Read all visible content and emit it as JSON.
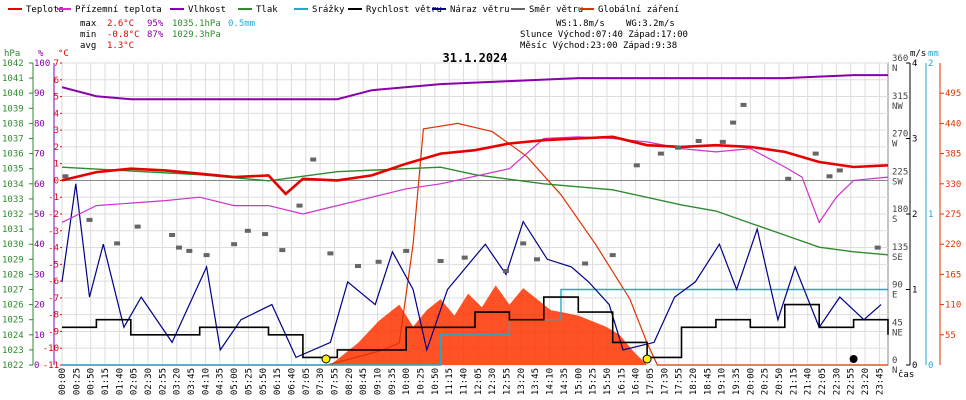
{
  "chart_data": {
    "type": "line",
    "title": "31.1.2024",
    "legend": [
      {
        "name": "Teplota",
        "color": "#e60000"
      },
      {
        "name": "Přízemní teplota",
        "color": "#cc33cc"
      },
      {
        "name": "Vlhkost",
        "color": "#8800aa"
      },
      {
        "name": "Tlak",
        "color": "#2e8b2e"
      },
      {
        "name": "Srážky",
        "color": "#22aacc"
      },
      {
        "name": "Rychlost větru",
        "color": "#000000"
      },
      {
        "name": "Náraz větru",
        "color": "#000088"
      },
      {
        "name": "Směr větru",
        "color": "#666666"
      },
      {
        "name": "Globální záření",
        "color": "#dd3300"
      }
    ],
    "stats": {
      "max": {
        "label": "max",
        "temp": "2.6°C",
        "hum": "95%",
        "press": "1035.1hPa",
        "rain": "0.5mm"
      },
      "min": {
        "label": "min",
        "temp": "-0.8°C",
        "hum": "87%",
        "press": "1029.3hPa"
      },
      "avg": {
        "label": "avg",
        "temp": "1.3°C"
      },
      "ws": "WS:1.8m/s",
      "wg": "WG:3.2m/s",
      "sun": "Slunce Východ:07:40  Západ:17:00",
      "moon": "Měsíc  Východ:23:00  Západ:9:38"
    },
    "axes": {
      "hpa": {
        "label": "hPa",
        "min": 1022,
        "max": 1042,
        "ticks": [
          1022,
          1023,
          1024,
          1025,
          1026,
          1027,
          1028,
          1029,
          1030,
          1031,
          1032,
          1033,
          1034,
          1035,
          1036,
          1037,
          1038,
          1039,
          1040,
          1041,
          1042
        ]
      },
      "humidity": {
        "label": "%",
        "min": 0,
        "max": 100,
        "ticks": [
          0,
          10,
          20,
          30,
          40,
          50,
          60,
          70,
          80,
          90,
          100
        ]
      },
      "temp": {
        "label": "°C",
        "min": -11,
        "max": 7,
        "ticks": [
          -11,
          -10,
          -9,
          -8,
          -7,
          -6,
          -5,
          -4,
          -3,
          -2,
          -1,
          0,
          1,
          2,
          3,
          4,
          5,
          6,
          7
        ]
      },
      "wind_speed": {
        "label": "m/s",
        "min": 0,
        "max": 4,
        "ticks": [
          0,
          1,
          2,
          3,
          4
        ]
      },
      "rain_mm": {
        "label": "mm",
        "min": 0,
        "max": 2,
        "ticks": [
          0,
          1,
          2
        ]
      },
      "wind_dir": {
        "ticks": [
          {
            "v": 0,
            "l": "0",
            "d": "N"
          },
          {
            "v": 45,
            "l": "45",
            "d": "NE"
          },
          {
            "v": 90,
            "l": "90",
            "d": "E"
          },
          {
            "v": 135,
            "l": "135",
            "d": "SE"
          },
          {
            "v": 180,
            "l": "180",
            "d": "S"
          },
          {
            "v": 225,
            "l": "225",
            "d": "SW"
          },
          {
            "v": 270,
            "l": "270",
            "d": "W"
          },
          {
            "v": 315,
            "l": "315",
            "d": "NW"
          },
          {
            "v": 360,
            "l": "360",
            "d": "N"
          }
        ]
      },
      "radiation": {
        "label": "W/m²",
        "min": 0,
        "max": 550,
        "ticks": [
          55,
          110,
          165,
          220,
          275,
          330,
          385,
          440,
          495
        ]
      },
      "x_label": "čas",
      "x_ticks": [
        "00:00",
        "00:25",
        "00:50",
        "01:15",
        "01:40",
        "02:05",
        "02:30",
        "02:55",
        "03:20",
        "03:45",
        "04:10",
        "04:35",
        "05:00",
        "05:25",
        "05:50",
        "06:15",
        "06:40",
        "07:05",
        "07:30",
        "07:55",
        "08:20",
        "08:45",
        "09:10",
        "09:35",
        "10:00",
        "10:25",
        "10:50",
        "11:15",
        "11:40",
        "12:05",
        "12:30",
        "12:55",
        "13:20",
        "13:45",
        "14:10",
        "14:35",
        "15:00",
        "15:25",
        "15:50",
        "16:15",
        "16:40",
        "17:05",
        "17:30",
        "17:55",
        "18:20",
        "18:45",
        "19:10",
        "19:35",
        "20:00",
        "20:25",
        "20:50",
        "21:15",
        "21:40",
        "22:05",
        "22:30",
        "22:55",
        "23:20",
        "23:45"
      ]
    },
    "series": {
      "temperature": [
        [
          0,
          0
        ],
        [
          1,
          0.5
        ],
        [
          2,
          0.7
        ],
        [
          3,
          0.6
        ],
        [
          4,
          0.4
        ],
        [
          5,
          0.2
        ],
        [
          6,
          0.3
        ],
        [
          6.5,
          -0.8
        ],
        [
          7,
          0.1
        ],
        [
          8,
          0
        ],
        [
          9,
          0.3
        ],
        [
          10,
          1
        ],
        [
          11,
          1.6
        ],
        [
          12,
          1.8
        ],
        [
          13,
          2.2
        ],
        [
          14,
          2.4
        ],
        [
          15,
          2.5
        ],
        [
          16,
          2.6
        ],
        [
          17,
          2.1
        ],
        [
          18,
          2
        ],
        [
          19,
          2.1
        ],
        [
          20,
          2
        ],
        [
          21,
          1.7
        ],
        [
          22,
          1.1
        ],
        [
          23,
          0.8
        ],
        [
          24,
          0.9
        ]
      ],
      "ground_temperature": [
        [
          0,
          -2.5
        ],
        [
          0.5,
          -2
        ],
        [
          1,
          -1.5
        ],
        [
          3,
          -1.2
        ],
        [
          4,
          -1
        ],
        [
          5,
          -1.5
        ],
        [
          6,
          -1.5
        ],
        [
          7,
          -2
        ],
        [
          10,
          -0.5
        ],
        [
          11,
          -0.2
        ],
        [
          13,
          0.7
        ],
        [
          14,
          2.5
        ],
        [
          15,
          2.6
        ],
        [
          16,
          2.5
        ],
        [
          17,
          2.3
        ],
        [
          18,
          1.9
        ],
        [
          19,
          1.7
        ],
        [
          20,
          1.9
        ],
        [
          21,
          0.8
        ],
        [
          21.5,
          0.2
        ],
        [
          22,
          -2.5
        ],
        [
          22.5,
          -1
        ],
        [
          23,
          0
        ],
        [
          24,
          0.2
        ]
      ],
      "humidity": [
        [
          0,
          92
        ],
        [
          1,
          89
        ],
        [
          2,
          88
        ],
        [
          5,
          88
        ],
        [
          8,
          88
        ],
        [
          9,
          91
        ],
        [
          11,
          93
        ],
        [
          13,
          94
        ],
        [
          15,
          95
        ],
        [
          17,
          95
        ],
        [
          19,
          95
        ],
        [
          21,
          95
        ],
        [
          23,
          96
        ],
        [
          24,
          96
        ]
      ],
      "pressure": [
        [
          0,
          1035.1
        ],
        [
          4,
          1034.6
        ],
        [
          6,
          1034.2
        ],
        [
          8,
          1034.8
        ],
        [
          10,
          1035
        ],
        [
          11,
          1035.1
        ],
        [
          12,
          1034.6
        ],
        [
          14,
          1034
        ],
        [
          16,
          1033.6
        ],
        [
          18,
          1032.6
        ],
        [
          19,
          1032.2
        ],
        [
          20,
          1031.4
        ],
        [
          21,
          1030.6
        ],
        [
          22,
          1029.8
        ],
        [
          23,
          1029.5
        ],
        [
          24,
          1029.3
        ]
      ],
      "rain_mm": [
        [
          0,
          0
        ],
        [
          10.5,
          0
        ],
        [
          11,
          0.2
        ],
        [
          12,
          0.2
        ],
        [
          13,
          0.3
        ],
        [
          14,
          0.3
        ],
        [
          14.5,
          0.5
        ],
        [
          15,
          0.5
        ],
        [
          24,
          0.5
        ]
      ],
      "wind_speed": [
        [
          0,
          0.5
        ],
        [
          1,
          0.6
        ],
        [
          2,
          0.4
        ],
        [
          4,
          0.5
        ],
        [
          6,
          0.4
        ],
        [
          7,
          0.1
        ],
        [
          8,
          0.2
        ],
        [
          10,
          0.5
        ],
        [
          12,
          0.7
        ],
        [
          13,
          0.6
        ],
        [
          14,
          0.9
        ],
        [
          15,
          0.7
        ],
        [
          16,
          0.3
        ],
        [
          17,
          0.1
        ],
        [
          18,
          0.5
        ],
        [
          19,
          0.6
        ],
        [
          20,
          0.5
        ],
        [
          21,
          0.8
        ],
        [
          22,
          0.5
        ],
        [
          23,
          0.6
        ],
        [
          24,
          0.4
        ]
      ],
      "wind_gust": [
        [
          0,
          1.1
        ],
        [
          0.4,
          2.4
        ],
        [
          0.8,
          0.9
        ],
        [
          1.2,
          1.6
        ],
        [
          1.8,
          0.5
        ],
        [
          2.3,
          0.9
        ],
        [
          3.2,
          0.3
        ],
        [
          3.6,
          0.7
        ],
        [
          4.2,
          1.3
        ],
        [
          4.6,
          0.2
        ],
        [
          5.2,
          0.6
        ],
        [
          6.1,
          0.8
        ],
        [
          6.8,
          0.1
        ],
        [
          7.8,
          0.3
        ],
        [
          8.3,
          1.1
        ],
        [
          9.1,
          0.8
        ],
        [
          9.6,
          1.5
        ],
        [
          10.2,
          1.0
        ],
        [
          10.6,
          0.2
        ],
        [
          11.2,
          1.0
        ],
        [
          12.3,
          1.6
        ],
        [
          12.9,
          1.2
        ],
        [
          13.4,
          1.9
        ],
        [
          14.1,
          1.4
        ],
        [
          14.8,
          1.3
        ],
        [
          15.3,
          1.1
        ],
        [
          15.9,
          0.8
        ],
        [
          16.3,
          0.2
        ],
        [
          17.2,
          0.3
        ],
        [
          17.8,
          0.9
        ],
        [
          18.4,
          1.1
        ],
        [
          19.1,
          1.6
        ],
        [
          19.6,
          1.0
        ],
        [
          20.2,
          1.8
        ],
        [
          20.8,
          0.6
        ],
        [
          21.3,
          1.3
        ],
        [
          22.0,
          0.5
        ],
        [
          22.6,
          0.9
        ],
        [
          23.3,
          0.6
        ],
        [
          23.8,
          0.8
        ]
      ],
      "wind_dir": [
        [
          0.1,
          225
        ],
        [
          0.8,
          173
        ],
        [
          1.6,
          145
        ],
        [
          2.2,
          165
        ],
        [
          3.2,
          155
        ],
        [
          3.4,
          140
        ],
        [
          3.7,
          136
        ],
        [
          4.2,
          131
        ],
        [
          5.0,
          144
        ],
        [
          5.4,
          160
        ],
        [
          5.9,
          156
        ],
        [
          6.4,
          137
        ],
        [
          6.9,
          190
        ],
        [
          7.3,
          245
        ],
        [
          7.8,
          133
        ],
        [
          8.6,
          118
        ],
        [
          9.2,
          123
        ],
        [
          10.0,
          136
        ],
        [
          11.0,
          124
        ],
        [
          11.7,
          128
        ],
        [
          12.9,
          112
        ],
        [
          13.4,
          145
        ],
        [
          13.8,
          126
        ],
        [
          15.2,
          121
        ],
        [
          16.0,
          131
        ],
        [
          16.7,
          238
        ],
        [
          17.4,
          252
        ],
        [
          17.9,
          259
        ],
        [
          18.5,
          267
        ],
        [
          19.2,
          266
        ],
        [
          19.5,
          289
        ],
        [
          19.8,
          310
        ],
        [
          21.1,
          222
        ],
        [
          21.9,
          252
        ],
        [
          22.3,
          225
        ],
        [
          22.6,
          232
        ],
        [
          23.7,
          140
        ]
      ],
      "radiation": [
        [
          0,
          0
        ],
        [
          7.7,
          0
        ],
        [
          8.0,
          5
        ],
        [
          8.6,
          15
        ],
        [
          9.2,
          25
        ],
        [
          9.8,
          40
        ],
        [
          10.2,
          220
        ],
        [
          10.5,
          430
        ],
        [
          11.5,
          440
        ],
        [
          12.5,
          425
        ],
        [
          13.5,
          380
        ],
        [
          14.5,
          310
        ],
        [
          15.5,
          220
        ],
        [
          16.5,
          120
        ],
        [
          17.0,
          40
        ],
        [
          17.3,
          0
        ],
        [
          24,
          0
        ]
      ],
      "radiation_fill": [
        [
          7.8,
          0
        ],
        [
          8.2,
          20
        ],
        [
          8.6,
          40
        ],
        [
          9.2,
          80
        ],
        [
          9.8,
          110
        ],
        [
          10.2,
          70
        ],
        [
          10.6,
          100
        ],
        [
          11.0,
          120
        ],
        [
          11.4,
          90
        ],
        [
          11.8,
          130
        ],
        [
          12.2,
          105
        ],
        [
          12.6,
          145
        ],
        [
          13.0,
          110
        ],
        [
          13.4,
          140
        ],
        [
          13.8,
          120
        ],
        [
          14.2,
          100
        ],
        [
          14.6,
          95
        ],
        [
          15.0,
          90
        ],
        [
          15.4,
          80
        ],
        [
          15.8,
          70
        ],
        [
          16.2,
          55
        ],
        [
          16.6,
          25
        ],
        [
          17.0,
          0
        ]
      ]
    },
    "markers": {
      "sunrise": 7.67,
      "sunset": 17.0,
      "moon": 23.0
    }
  }
}
